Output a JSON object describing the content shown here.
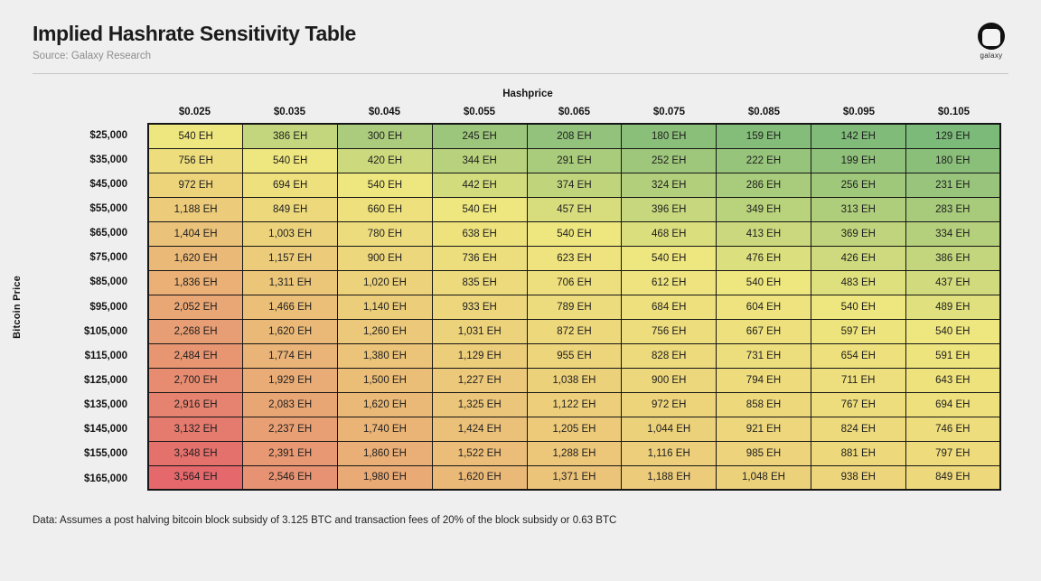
{
  "header": {
    "title": "Implied Hashrate Sensitivity Table",
    "source": "Source: Galaxy Research",
    "logo_label": "galaxy"
  },
  "footer": {
    "note": "Data: Assumes a post halving bitcoin block subsidy of 3.125 BTC and transaction fees of 20% of the block subsidy or 0.63 BTC"
  },
  "chart_data": {
    "type": "heatmap",
    "title": "Implied Hashrate Sensitivity Table",
    "xlabel": "Hashprice",
    "ylabel": "Bitcoin Price",
    "unit_suffix": " EH",
    "columns": [
      "$0.025",
      "$0.035",
      "$0.045",
      "$0.055",
      "$0.065",
      "$0.075",
      "$0.085",
      "$0.095",
      "$0.105"
    ],
    "rows": [
      "$25,000",
      "$35,000",
      "$45,000",
      "$55,000",
      "$65,000",
      "$75,000",
      "$85,000",
      "$95,000",
      "$105,000",
      "$115,000",
      "$125,000",
      "$135,000",
      "$145,000",
      "$155,000",
      "$165,000"
    ],
    "values": [
      [
        540,
        386,
        300,
        245,
        208,
        180,
        159,
        142,
        129
      ],
      [
        756,
        540,
        420,
        344,
        291,
        252,
        222,
        199,
        180
      ],
      [
        972,
        694,
        540,
        442,
        374,
        324,
        286,
        256,
        231
      ],
      [
        1188,
        849,
        660,
        540,
        457,
        396,
        349,
        313,
        283
      ],
      [
        1404,
        1003,
        780,
        638,
        540,
        468,
        413,
        369,
        334
      ],
      [
        1620,
        1157,
        900,
        736,
        623,
        540,
        476,
        426,
        386
      ],
      [
        1836,
        1311,
        1020,
        835,
        706,
        612,
        540,
        483,
        437
      ],
      [
        2052,
        1466,
        1140,
        933,
        789,
        684,
        604,
        540,
        489
      ],
      [
        2268,
        1620,
        1260,
        1031,
        872,
        756,
        667,
        597,
        540
      ],
      [
        2484,
        1774,
        1380,
        1129,
        955,
        828,
        731,
        654,
        591
      ],
      [
        2700,
        1929,
        1500,
        1227,
        1038,
        900,
        794,
        711,
        643
      ],
      [
        2916,
        2083,
        1620,
        1325,
        1122,
        972,
        858,
        767,
        694
      ],
      [
        3132,
        2237,
        1740,
        1424,
        1205,
        1044,
        921,
        824,
        746
      ],
      [
        3348,
        2391,
        1860,
        1522,
        1288,
        1116,
        985,
        881,
        797
      ],
      [
        3564,
        2546,
        1980,
        1620,
        1371,
        1188,
        1048,
        938,
        849
      ]
    ],
    "color_scale": {
      "min": 129,
      "mid": 540,
      "max": 3564,
      "min_color": "#7cba7a",
      "mid_color": "#eee67e",
      "max_color": "#e4686c"
    },
    "layout": {
      "grid": "off",
      "legend": "none",
      "cell_borders": "#161616"
    }
  }
}
